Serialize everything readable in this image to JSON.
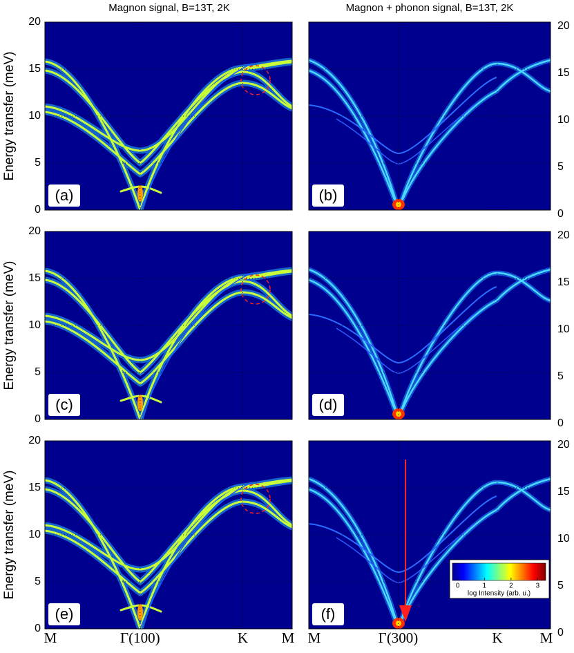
{
  "column_titles": [
    "Magnon signal, B=13T, 2K",
    "Magnon + phonon signal, B=13T, 2K"
  ],
  "chart_data": [
    {
      "type": "heatmap",
      "label": "(a)",
      "ylabel": "Energy transfer (meV)",
      "ylim": [
        0,
        20
      ],
      "yticks": [
        0,
        5,
        10,
        15,
        20
      ]
    },
    {
      "type": "heatmap",
      "label": "(b)",
      "ylim": [
        0,
        20
      ],
      "yticks": [
        0,
        5,
        10,
        15,
        20
      ]
    },
    {
      "type": "heatmap",
      "label": "(c)",
      "ylabel": "Energy transfer (meV)",
      "ylim": [
        0,
        20
      ],
      "yticks": [
        0,
        5,
        10,
        15,
        20
      ]
    },
    {
      "type": "heatmap",
      "label": "(d)",
      "ylim": [
        0,
        20
      ],
      "yticks": [
        0,
        5,
        10,
        15,
        20
      ]
    },
    {
      "type": "heatmap",
      "label": "(e)",
      "ylabel": "Energy transfer (meV)",
      "ylim": [
        0,
        20
      ],
      "yticks": [
        0,
        5,
        10,
        15,
        20
      ],
      "xlim": [
        0,
        1
      ],
      "xticks": [
        {
          "value": 0,
          "label": "M"
        },
        {
          "value": 0.385,
          "label": "Γ(100)"
        },
        {
          "value": 0.8,
          "label": "K"
        },
        {
          "value": 1,
          "label": "M"
        }
      ]
    },
    {
      "type": "heatmap",
      "label": "(f)",
      "ylim": [
        0,
        20
      ],
      "yticks": [
        0,
        5,
        10,
        15,
        20
      ],
      "xlim": [
        0,
        1
      ],
      "xticks": [
        {
          "value": 0,
          "label": "M"
        },
        {
          "value": 0.37,
          "label": "Γ(300)"
        },
        {
          "value": 0.78,
          "label": "K"
        },
        {
          "value": 1,
          "label": "M"
        }
      ],
      "colorbar": {
        "lim": [
          -0.2,
          3.3
        ],
        "ticks": [
          0,
          1,
          2,
          3
        ],
        "label": "log Intensity (arb. u.)"
      }
    }
  ]
}
